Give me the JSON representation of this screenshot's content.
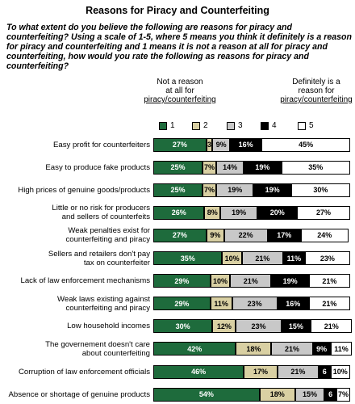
{
  "chart_data": {
    "type": "stacked_bar_horizontal",
    "title": "Reasons for Piracy and Counterfeiting",
    "subtitle": "To what extent do you believe the following are reasons for piracy and counterfeiting? Using a scale of 1-5, where 5 means you think it definitely is a reason for piracy and counterfeiting and 1 means it is not a reason at all for piracy and counterfeiting, how would you rate the following as reasons for piracy and counterfeiting?",
    "low_anchor": [
      "Not a reason",
      "at all for",
      "piracy/counterfeiting"
    ],
    "high_anchor": [
      "Definitely is a",
      "reason for",
      "piracy/counterfeiting"
    ],
    "categories": [
      "Easy profit for counterfeiters",
      "Easy to produce fake products",
      "High prices of genuine goods/products",
      "Little or no risk for producers\nand sellers of counterfeits",
      "Weak penalties exist for\ncounterfeiting and piracy",
      "Sellers and retailers don't pay\ntax on counterfeiter",
      "Lack of law enforcement mechanisms",
      "Weak laws existing against\ncounterfeiting and piracy",
      "Low household incomes",
      "The governement doesn't care\nabout counterfeiting",
      "Corruption of law enforcement officials",
      "Absence or shortage of genuine products"
    ],
    "series": [
      {
        "name": "1",
        "color": "#1e6b3c",
        "values": [
          27,
          25,
          25,
          26,
          27,
          35,
          29,
          29,
          30,
          42,
          46,
          54
        ],
        "value_labels": [
          "27%",
          "25%",
          "25%",
          "26%",
          "27%",
          "35%",
          "29%",
          "29%",
          "30%",
          "42%",
          "46%",
          "54%"
        ]
      },
      {
        "name": "2",
        "color": "#d9d0a3",
        "values": [
          3,
          7,
          7,
          8,
          9,
          10,
          10,
          11,
          12,
          18,
          17,
          18
        ],
        "value_labels": [
          "3",
          "7%",
          "7%",
          "8%",
          "9%",
          "10%",
          "10%",
          "11%",
          "12%",
          "18%",
          "17%",
          "18%"
        ]
      },
      {
        "name": "3",
        "color": "#c8c8c8",
        "values": [
          9,
          14,
          19,
          19,
          22,
          21,
          21,
          23,
          23,
          21,
          21,
          15
        ],
        "value_labels": [
          "9%",
          "14%",
          "19%",
          "19%",
          "22%",
          "21%",
          "21%",
          "23%",
          "23%",
          "21%",
          "21%",
          "15%"
        ]
      },
      {
        "name": "4",
        "color": "#000000",
        "values": [
          16,
          19,
          19,
          20,
          17,
          11,
          19,
          16,
          15,
          9,
          6,
          6
        ],
        "value_labels": [
          "16%",
          "19%",
          "19%",
          "20%",
          "17%",
          "11%",
          "19%",
          "16%",
          "15%",
          "9%",
          "6",
          "6"
        ]
      },
      {
        "name": "5",
        "color": "#ffffff",
        "values": [
          45,
          35,
          30,
          27,
          24,
          23,
          21,
          21,
          21,
          11,
          10,
          7
        ],
        "value_labels": [
          "45%",
          "35%",
          "30%",
          "27%",
          "24%",
          "23%",
          "21%",
          "21%",
          "21%",
          "11%",
          "10%",
          "7%"
        ]
      }
    ]
  }
}
